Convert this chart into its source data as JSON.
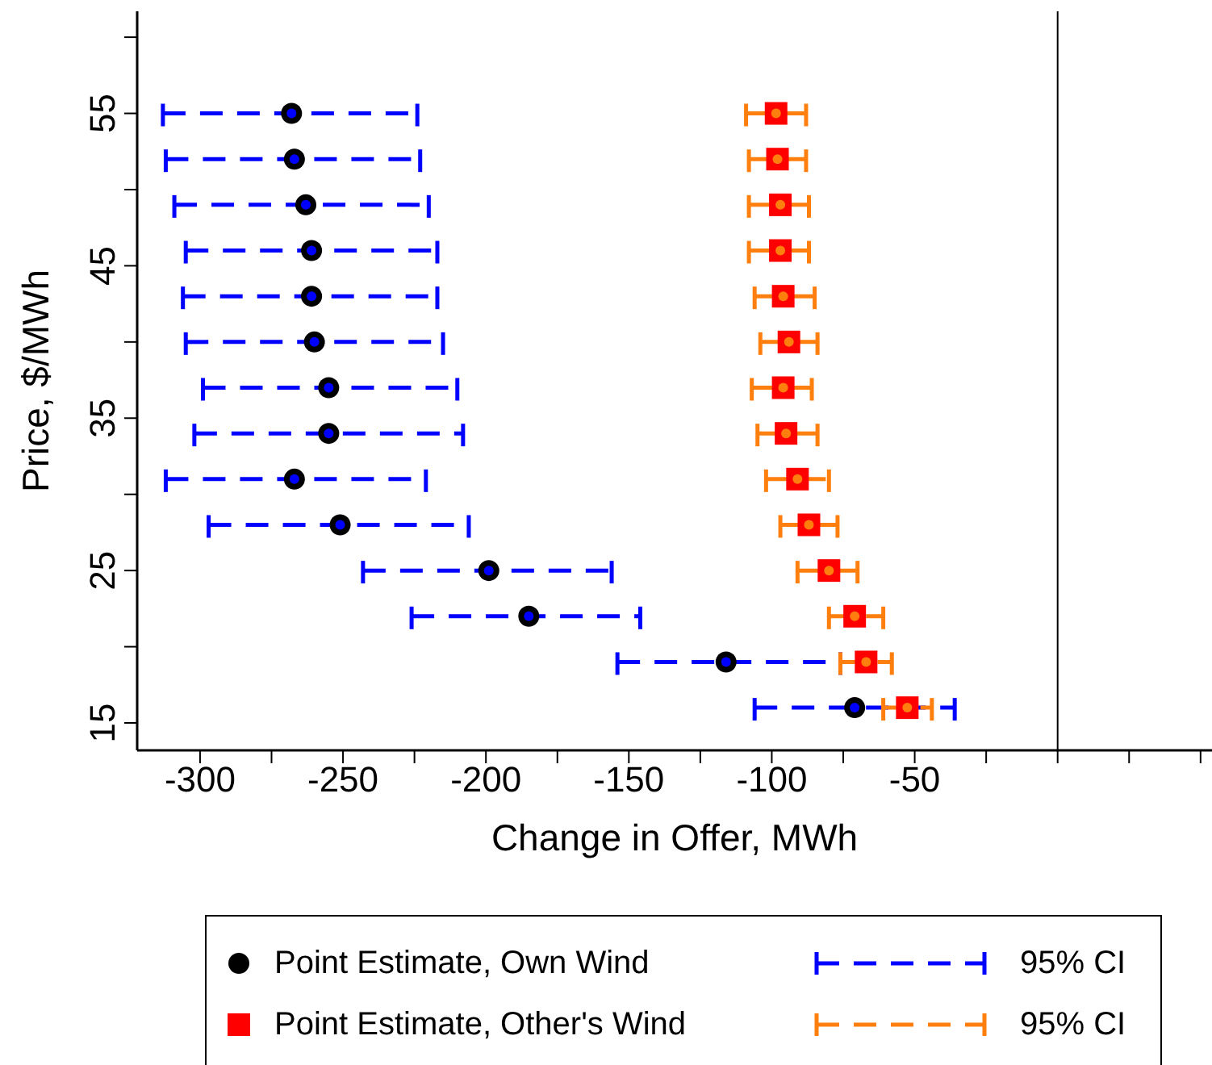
{
  "chart_data": {
    "type": "scatter",
    "xlabel": "Change in Offer, MWh",
    "ylabel": "Price, $/MWh",
    "xlim": [
      -322,
      54
    ],
    "xticks": [
      -300,
      {
        "value": -275,
        "label": null
      },
      -250,
      {
        "value": -225,
        "label": null
      },
      -200,
      {
        "value": -175,
        "label": null
      },
      -150,
      {
        "value": -125,
        "label": null
      },
      -100,
      {
        "value": -75,
        "label": null
      },
      -50,
      {
        "value": -25,
        "label": null
      },
      {
        "value": 0,
        "label": null
      },
      {
        "value": 25,
        "label": null
      },
      {
        "value": 50,
        "label": null
      }
    ],
    "ylim": [
      13.2,
      61.7
    ],
    "yticks": [
      15,
      {
        "value": 20,
        "label": null
      },
      25,
      {
        "value": 30,
        "label": null
      },
      35,
      {
        "value": 40,
        "label": null
      },
      45,
      {
        "value": 50,
        "label": null
      },
      55,
      {
        "value": 60,
        "label": null
      }
    ],
    "grid": false,
    "legend": "bottom",
    "line_style": "dashed",
    "ref_lines": [
      {
        "axis": "x",
        "value": 0,
        "label": null,
        "color": "#000000"
      }
    ],
    "series": [
      {
        "name": "Point Estimate, Own Wind",
        "color": "#000000",
        "marker": "circle",
        "x": [
          -268,
          -267,
          -263,
          -261,
          -261,
          -260,
          -255,
          -255,
          -267,
          -251,
          -199,
          -185,
          -116,
          -71
        ],
        "values": [
          55,
          52,
          49,
          46,
          43,
          40,
          37,
          34,
          31,
          28,
          25,
          22,
          19,
          16
        ]
      },
      {
        "name": "95% CI",
        "color": "#0000ff",
        "x": [
          -268,
          -267,
          -263,
          -261,
          -261,
          -260,
          -255,
          -255,
          -267,
          -251,
          -199,
          -185,
          -116,
          -71
        ],
        "values": [
          55,
          52,
          49,
          46,
          43,
          40,
          37,
          34,
          31,
          28,
          25,
          22,
          19,
          16
        ],
        "xerrors": [
          [
            -313,
            -224
          ],
          [
            -312,
            -223
          ],
          [
            -309,
            -220
          ],
          [
            -305,
            -217
          ],
          [
            -306,
            -217
          ],
          [
            -305,
            -215
          ],
          [
            -299,
            -210
          ],
          [
            -302,
            -208
          ],
          [
            -312,
            -221
          ],
          [
            -297,
            -206
          ],
          [
            -243,
            -156
          ],
          [
            -226,
            -146
          ],
          [
            -154,
            -76
          ],
          [
            -106,
            -36
          ]
        ]
      },
      {
        "name": "Point Estimate, Other's Wind",
        "color": "#ff0000",
        "marker": "square",
        "x": [
          -98.5,
          -98,
          -97,
          -97,
          -96,
          -94,
          -96,
          -95,
          -91,
          -87,
          -80,
          -71,
          -67,
          -52.6
        ],
        "values": [
          55,
          52,
          49,
          46,
          43,
          40,
          37,
          34,
          31,
          28,
          25,
          22,
          19,
          16
        ]
      },
      {
        "name": "95% CI",
        "color": "#ff7f0e",
        "x": [
          -98.5,
          -98,
          -97,
          -97,
          -96,
          -94,
          -96,
          -95,
          -91,
          -87,
          -80,
          -71,
          -67,
          -52.6
        ],
        "values": [
          55,
          52,
          49,
          46,
          43,
          40,
          37,
          34,
          31,
          28,
          25,
          22,
          19,
          16
        ],
        "xerrors": [
          [
            -109,
            -88
          ],
          [
            -108,
            -88
          ],
          [
            -108,
            -87
          ],
          [
            -108,
            -87
          ],
          [
            -106,
            -85
          ],
          [
            -104,
            -84
          ],
          [
            -107,
            -86
          ],
          [
            -105,
            -84
          ],
          [
            -102,
            -80
          ],
          [
            -97,
            -77
          ],
          [
            -91,
            -70
          ],
          [
            -80,
            -61
          ],
          [
            -76,
            -58
          ],
          [
            -61,
            -44
          ]
        ]
      }
    ]
  }
}
